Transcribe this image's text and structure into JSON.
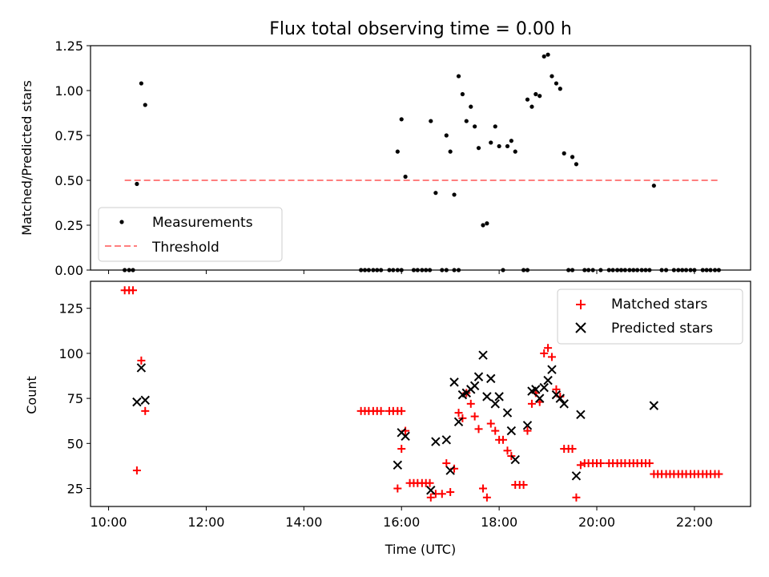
{
  "chart_data": [
    {
      "type": "scatter",
      "title": "Flux total observing time = 0.00 h",
      "xlabel": "",
      "ylabel": "Matched/Predicted stars",
      "xlim": [
        9.63,
        23.15
      ],
      "ylim": [
        0.0,
        1.25
      ],
      "yticks": [
        0.0,
        0.25,
        0.5,
        0.75,
        1.0,
        1.25
      ],
      "ytick_labels": [
        "0.00",
        "0.25",
        "0.50",
        "0.75",
        "1.00",
        "1.25"
      ],
      "legend_position": "lower-left",
      "colors": {
        "measurements": "#000000",
        "threshold": "#ff7f7f"
      },
      "series": [
        {
          "name": "Measurements",
          "style": "dot",
          "points": [
            [
              10.33,
              0
            ],
            [
              10.42,
              0
            ],
            [
              10.5,
              0
            ],
            [
              10.58,
              0.48
            ],
            [
              10.67,
              1.04
            ],
            [
              10.75,
              0.92
            ],
            [
              15.17,
              0
            ],
            [
              15.25,
              0
            ],
            [
              15.33,
              0
            ],
            [
              15.42,
              0
            ],
            [
              15.5,
              0
            ],
            [
              15.58,
              0
            ],
            [
              15.75,
              0
            ],
            [
              15.83,
              0
            ],
            [
              15.92,
              0
            ],
            [
              16.0,
              0
            ],
            [
              15.92,
              0.66
            ],
            [
              16.0,
              0.84
            ],
            [
              16.08,
              0.52
            ],
            [
              16.25,
              0
            ],
            [
              16.33,
              0
            ],
            [
              16.42,
              0
            ],
            [
              16.5,
              0
            ],
            [
              16.58,
              0
            ],
            [
              16.83,
              0
            ],
            [
              16.92,
              0
            ],
            [
              17.08,
              0
            ],
            [
              17.17,
              0
            ],
            [
              16.6,
              0.83
            ],
            [
              16.7,
              0.43
            ],
            [
              16.92,
              0.75
            ],
            [
              17.0,
              0.66
            ],
            [
              17.08,
              0.42
            ],
            [
              17.17,
              1.08
            ],
            [
              17.25,
              0.98
            ],
            [
              17.33,
              0.83
            ],
            [
              17.42,
              0.91
            ],
            [
              17.5,
              0.8
            ],
            [
              17.58,
              0.68
            ],
            [
              17.67,
              0.25
            ],
            [
              17.75,
              0.26
            ],
            [
              17.83,
              0.71
            ],
            [
              17.92,
              0.8
            ],
            [
              18.0,
              0.69
            ],
            [
              18.08,
              0
            ],
            [
              18.17,
              0.69
            ],
            [
              18.25,
              0.72
            ],
            [
              18.33,
              0.66
            ],
            [
              18.5,
              0
            ],
            [
              18.58,
              0
            ],
            [
              18.58,
              0.95
            ],
            [
              18.67,
              0.91
            ],
            [
              18.75,
              0.98
            ],
            [
              18.83,
              0.97
            ],
            [
              18.92,
              1.19
            ],
            [
              19.0,
              1.2
            ],
            [
              19.08,
              1.08
            ],
            [
              19.17,
              1.04
            ],
            [
              19.25,
              1.01
            ],
            [
              19.33,
              0.65
            ],
            [
              19.42,
              0
            ],
            [
              19.5,
              0
            ],
            [
              19.5,
              0.63
            ],
            [
              19.58,
              0.59
            ],
            [
              19.75,
              0
            ],
            [
              19.83,
              0
            ],
            [
              19.92,
              0
            ],
            [
              20.08,
              0
            ],
            [
              20.25,
              0
            ],
            [
              20.33,
              0
            ],
            [
              20.42,
              0
            ],
            [
              20.5,
              0
            ],
            [
              20.58,
              0
            ],
            [
              20.67,
              0
            ],
            [
              20.75,
              0
            ],
            [
              20.83,
              0
            ],
            [
              20.92,
              0
            ],
            [
              21.0,
              0
            ],
            [
              21.08,
              0
            ],
            [
              21.17,
              0.47
            ],
            [
              21.33,
              0
            ],
            [
              21.42,
              0
            ],
            [
              21.58,
              0
            ],
            [
              21.67,
              0
            ],
            [
              21.75,
              0
            ],
            [
              21.83,
              0
            ],
            [
              21.92,
              0
            ],
            [
              22.0,
              0
            ],
            [
              22.17,
              0
            ],
            [
              22.25,
              0
            ],
            [
              22.33,
              0
            ],
            [
              22.42,
              0
            ],
            [
              22.5,
              0
            ]
          ]
        },
        {
          "name": "Threshold",
          "style": "dashed-line",
          "points": [
            [
              10.33,
              0.5
            ],
            [
              22.5,
              0.5
            ]
          ]
        }
      ]
    },
    {
      "type": "scatter",
      "title": "",
      "xlabel": "Time (UTC)",
      "ylabel": "Count",
      "xlim": [
        9.63,
        23.15
      ],
      "ylim": [
        15,
        140
      ],
      "xticks": [
        10,
        12,
        14,
        16,
        18,
        20,
        22
      ],
      "xtick_labels": [
        "10:00",
        "12:00",
        "14:00",
        "16:00",
        "18:00",
        "20:00",
        "22:00"
      ],
      "yticks": [
        25,
        50,
        75,
        100,
        125
      ],
      "ytick_labels": [
        "25",
        "50",
        "75",
        "100",
        "125"
      ],
      "legend_position": "upper-right",
      "colors": {
        "matched": "#ff0000",
        "predicted": "#000000"
      },
      "series": [
        {
          "name": "Matched stars",
          "style": "plus",
          "points": [
            [
              10.33,
              135
            ],
            [
              10.42,
              135
            ],
            [
              10.5,
              135
            ],
            [
              10.58,
              35
            ],
            [
              10.67,
              96
            ],
            [
              10.75,
              68
            ],
            [
              15.17,
              68
            ],
            [
              15.25,
              68
            ],
            [
              15.33,
              68
            ],
            [
              15.42,
              68
            ],
            [
              15.5,
              68
            ],
            [
              15.58,
              68
            ],
            [
              15.75,
              68
            ],
            [
              15.83,
              68
            ],
            [
              15.92,
              68
            ],
            [
              16.0,
              68
            ],
            [
              15.92,
              25
            ],
            [
              16.0,
              47
            ],
            [
              16.08,
              57
            ],
            [
              16.17,
              28
            ],
            [
              16.25,
              28
            ],
            [
              16.33,
              28
            ],
            [
              16.42,
              28
            ],
            [
              16.5,
              28
            ],
            [
              16.58,
              28
            ],
            [
              16.6,
              20
            ],
            [
              16.7,
              22
            ],
            [
              16.83,
              22
            ],
            [
              16.92,
              39
            ],
            [
              17.0,
              23
            ],
            [
              17.08,
              36
            ],
            [
              17.17,
              67
            ],
            [
              17.25,
              64
            ],
            [
              17.33,
              78
            ],
            [
              17.42,
              72
            ],
            [
              17.5,
              65
            ],
            [
              17.58,
              58
            ],
            [
              17.67,
              25
            ],
            [
              17.75,
              20
            ],
            [
              17.83,
              61
            ],
            [
              17.92,
              57
            ],
            [
              18.0,
              52
            ],
            [
              18.08,
              52
            ],
            [
              18.17,
              46
            ],
            [
              18.25,
              43
            ],
            [
              18.33,
              27
            ],
            [
              18.42,
              27
            ],
            [
              18.5,
              27
            ],
            [
              18.58,
              57
            ],
            [
              18.67,
              72
            ],
            [
              18.75,
              78
            ],
            [
              18.83,
              73
            ],
            [
              18.92,
              100
            ],
            [
              19.0,
              103
            ],
            [
              19.08,
              98
            ],
            [
              19.17,
              80
            ],
            [
              19.25,
              76
            ],
            [
              19.33,
              47
            ],
            [
              19.42,
              47
            ],
            [
              19.5,
              47
            ],
            [
              19.58,
              20
            ],
            [
              19.67,
              38
            ],
            [
              19.75,
              39
            ],
            [
              19.83,
              39
            ],
            [
              19.92,
              39
            ],
            [
              20.0,
              39
            ],
            [
              20.08,
              39
            ],
            [
              20.25,
              39
            ],
            [
              20.33,
              39
            ],
            [
              20.42,
              39
            ],
            [
              20.5,
              39
            ],
            [
              20.58,
              39
            ],
            [
              20.67,
              39
            ],
            [
              20.75,
              39
            ],
            [
              20.83,
              39
            ],
            [
              20.92,
              39
            ],
            [
              21.0,
              39
            ],
            [
              21.08,
              39
            ],
            [
              21.17,
              33
            ],
            [
              21.25,
              33
            ],
            [
              21.33,
              33
            ],
            [
              21.42,
              33
            ],
            [
              21.5,
              33
            ],
            [
              21.58,
              33
            ],
            [
              21.67,
              33
            ],
            [
              21.75,
              33
            ],
            [
              21.83,
              33
            ],
            [
              21.92,
              33
            ],
            [
              22.0,
              33
            ],
            [
              22.08,
              33
            ],
            [
              22.17,
              33
            ],
            [
              22.25,
              33
            ],
            [
              22.33,
              33
            ],
            [
              22.42,
              33
            ],
            [
              22.5,
              33
            ]
          ]
        },
        {
          "name": "Predicted stars",
          "style": "x",
          "points": [
            [
              10.58,
              73
            ],
            [
              10.67,
              92
            ],
            [
              10.75,
              74
            ],
            [
              15.92,
              38
            ],
            [
              16.0,
              56
            ],
            [
              16.08,
              54
            ],
            [
              16.6,
              24
            ],
            [
              16.7,
              51
            ],
            [
              16.92,
              52
            ],
            [
              17.0,
              35
            ],
            [
              17.08,
              84
            ],
            [
              17.17,
              62
            ],
            [
              17.25,
              77
            ],
            [
              17.33,
              78
            ],
            [
              17.42,
              80
            ],
            [
              17.5,
              82
            ],
            [
              17.58,
              87
            ],
            [
              17.67,
              99
            ],
            [
              17.75,
              76
            ],
            [
              17.83,
              86
            ],
            [
              17.92,
              72
            ],
            [
              18.0,
              76
            ],
            [
              18.17,
              67
            ],
            [
              18.25,
              57
            ],
            [
              18.33,
              41
            ],
            [
              18.58,
              60
            ],
            [
              18.67,
              79
            ],
            [
              18.75,
              80
            ],
            [
              18.83,
              75
            ],
            [
              18.92,
              81
            ],
            [
              19.0,
              85
            ],
            [
              19.08,
              91
            ],
            [
              19.17,
              77
            ],
            [
              19.25,
              75
            ],
            [
              19.33,
              72
            ],
            [
              19.58,
              32
            ],
            [
              19.67,
              66
            ],
            [
              21.17,
              71
            ]
          ]
        }
      ]
    }
  ]
}
